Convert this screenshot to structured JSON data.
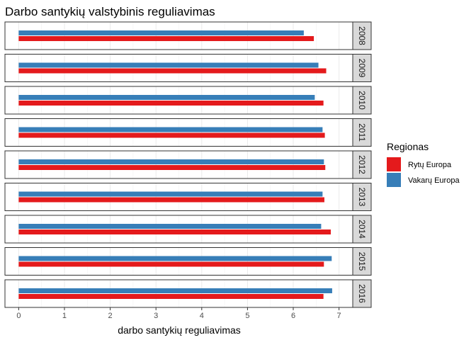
{
  "chart_data": {
    "type": "bar",
    "orientation": "horizontal",
    "title": "Darbo santykių valstybinis reguliavimas",
    "xlabel": "darbo santykių reguliavimas",
    "ylabel": "",
    "xlim": [
      -0.3,
      7.3
    ],
    "xticks": [
      0,
      1,
      2,
      3,
      4,
      5,
      6,
      7
    ],
    "grid": true,
    "facet_by": "year",
    "facets": [
      "2008",
      "2009",
      "2010",
      "2011",
      "2012",
      "2013",
      "2014",
      "2015",
      "2016"
    ],
    "legend": {
      "title": "Regionas",
      "position": "right"
    },
    "series": [
      {
        "name": "Rytų Europa",
        "color": "#E41A1C",
        "values": [
          6.45,
          6.72,
          6.66,
          6.69,
          6.7,
          6.68,
          6.82,
          6.67,
          6.66
        ]
      },
      {
        "name": "Vakarų Europa",
        "color": "#377EB8",
        "values": [
          6.23,
          6.55,
          6.47,
          6.64,
          6.67,
          6.64,
          6.61,
          6.84,
          6.85
        ]
      }
    ]
  }
}
